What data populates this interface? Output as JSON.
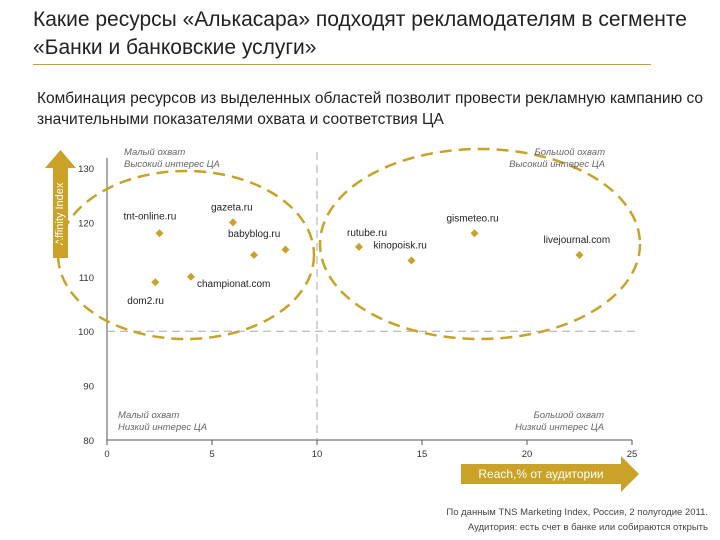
{
  "title": "Какие ресурсы «Алькасара» подходят рекламодателям в сегменте «Банки и банковские услуги»",
  "subtitle": "Комбинация ресурсов из выделенных областей позволит провести рекламную кампанию со значительными показателями охвата и соответствия ЦА",
  "source": {
    "line1": "По данным TNS Marketing Index, Россия, 2 полугодие 2011.",
    "line2": "Аудитория: есть счет в банке или собираются открыть"
  },
  "quadrants": {
    "top_left": [
      "Малый охват",
      "Высокий интерес ЦА"
    ],
    "top_right": [
      "Большой охват",
      "Высокий интерес ЦА"
    ],
    "bottom_left": [
      "Малый охват",
      "Низкий интерес ЦА"
    ],
    "bottom_right": [
      "Большой охват",
      "Низкий интерес ЦА"
    ]
  },
  "colors": {
    "accent": "#c9a227",
    "grid": "#aaaaaa",
    "axis": "#555555"
  },
  "chart_data": {
    "type": "scatter",
    "xlabel": "Reach,% от аудитории",
    "ylabel": "Affinity Index",
    "xlim": [
      0,
      25
    ],
    "ylim": [
      80,
      130
    ],
    "xticks": [
      0,
      5,
      10,
      15,
      20,
      25
    ],
    "yticks": [
      80,
      90,
      100,
      110,
      120,
      130
    ],
    "reference_lines": {
      "x": 10,
      "y": 100
    },
    "points": [
      {
        "label": "tnt-online.ru",
        "x": 2.5,
        "y": 118
      },
      {
        "label": "gazeta.ru",
        "x": 6.0,
        "y": 120
      },
      {
        "label": "babyblog.ru",
        "x": 7.0,
        "y": 114
      },
      {
        "label": "babyblog.ru",
        "x": 8.5,
        "y": 115
      },
      {
        "label": "rutube.ru",
        "x": 12.0,
        "y": 115.5
      },
      {
        "label": "gismeteo.ru",
        "x": 17.5,
        "y": 118
      },
      {
        "label": "kinopoisk.ru",
        "x": 14.5,
        "y": 113
      },
      {
        "label": "livejournal.com",
        "x": 22.5,
        "y": 114
      },
      {
        "label": "championat.com",
        "x": 4.0,
        "y": 110
      },
      {
        "label": "dom2.ru",
        "x": 2.3,
        "y": 109
      }
    ]
  }
}
